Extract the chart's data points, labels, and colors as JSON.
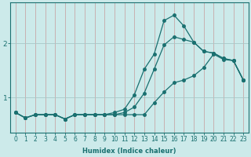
{
  "xlabel": "Humidex (Indice chaleur)",
  "bg_color": "#cceaea",
  "grid_color_v": "#c8a8a8",
  "grid_color_h": "#a8c8c8",
  "line_color": "#1a7070",
  "x": [
    0,
    1,
    2,
    3,
    4,
    5,
    6,
    7,
    8,
    9,
    10,
    11,
    12,
    13,
    14,
    15,
    16,
    17,
    18,
    19,
    20,
    21,
    22,
    23
  ],
  "line1": [
    0.72,
    0.62,
    0.68,
    0.68,
    0.68,
    0.6,
    0.68,
    0.68,
    0.68,
    0.68,
    0.72,
    0.78,
    1.05,
    1.52,
    1.8,
    2.42,
    2.52,
    2.32,
    2.02,
    1.85,
    1.82,
    1.72,
    1.68,
    1.32
  ],
  "line2": [
    0.72,
    0.62,
    0.68,
    0.68,
    0.68,
    0.6,
    0.68,
    0.68,
    0.68,
    0.68,
    0.68,
    0.72,
    0.82,
    1.08,
    1.52,
    1.97,
    2.12,
    2.07,
    2.02,
    1.85,
    1.82,
    1.72,
    1.68,
    1.32
  ],
  "line3": [
    0.72,
    0.62,
    0.68,
    0.68,
    0.68,
    0.6,
    0.68,
    0.68,
    0.68,
    0.68,
    0.68,
    0.68,
    0.68,
    0.68,
    0.9,
    1.1,
    1.27,
    1.32,
    1.4,
    1.55,
    1.8,
    1.7,
    1.68,
    1.32
  ],
  "yticks": [
    1,
    2
  ],
  "xlim": [
    -0.5,
    23.5
  ],
  "ylim": [
    0.35,
    2.75
  ],
  "marker_size": 2.5,
  "linewidth": 0.9,
  "xlabel_fontsize": 6,
  "tick_fontsize": 5.5
}
